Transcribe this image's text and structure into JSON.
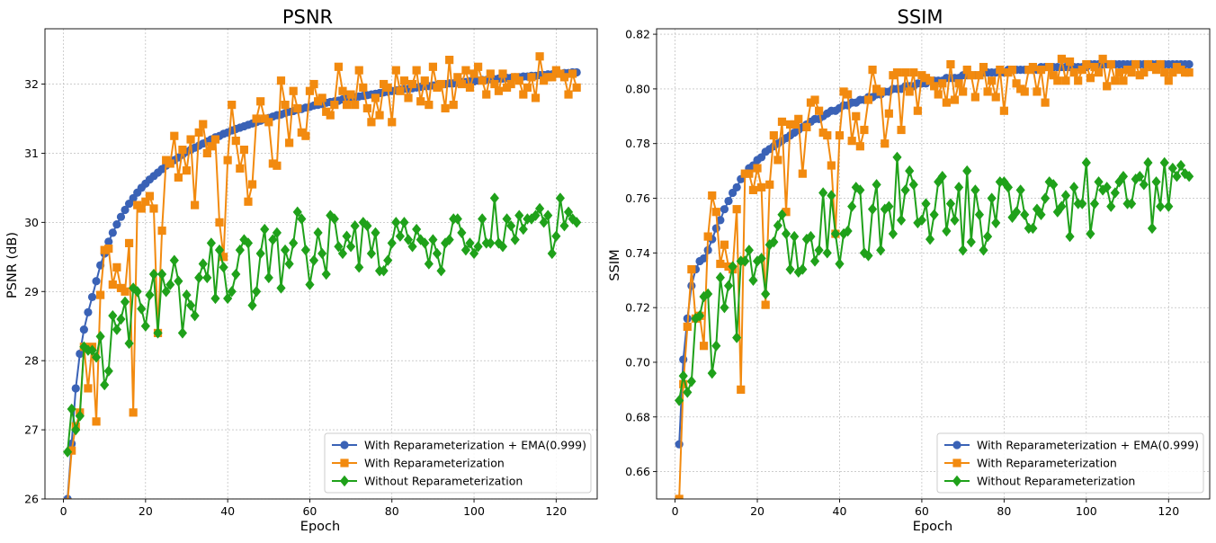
{
  "chart_data": [
    {
      "type": "line",
      "title": "PSNR",
      "xlabel": "Epoch",
      "ylabel": "PSNR (dB)",
      "xlim": [
        -4.5,
        130
      ],
      "ylim": [
        26,
        32.8
      ],
      "xticks": [
        0,
        20,
        40,
        60,
        80,
        100,
        120
      ],
      "yticks": [
        26,
        27,
        28,
        29,
        30,
        31,
        32
      ],
      "ytick_decimals": 0,
      "grid": true,
      "legend": "bottom-right",
      "epochs": [
        1,
        125
      ],
      "series": [
        {
          "name": "With Reparameterization + EMA(0.999)",
          "color": "#3a62b6",
          "marker": "circle",
          "values": [
            26.0,
            26.8,
            27.6,
            28.1,
            28.45,
            28.7,
            28.92,
            29.15,
            29.38,
            29.55,
            29.72,
            29.85,
            29.97,
            30.08,
            30.18,
            30.27,
            30.35,
            30.43,
            30.5,
            30.56,
            30.62,
            30.67,
            30.72,
            30.77,
            30.82,
            30.86,
            30.9,
            30.94,
            30.98,
            31.02,
            31.05,
            31.08,
            31.11,
            31.14,
            31.17,
            31.2,
            31.23,
            31.25,
            31.28,
            31.3,
            31.33,
            31.35,
            31.37,
            31.39,
            31.41,
            31.43,
            31.45,
            31.47,
            31.49,
            31.51,
            31.53,
            31.55,
            31.56,
            31.58,
            31.6,
            31.61,
            31.63,
            31.64,
            31.66,
            31.67,
            31.69,
            31.7,
            31.71,
            31.73,
            31.74,
            31.75,
            31.76,
            31.78,
            31.79,
            31.8,
            31.81,
            31.82,
            31.83,
            31.84,
            31.85,
            31.86,
            31.87,
            31.88,
            31.89,
            31.9,
            31.91,
            31.92,
            31.93,
            31.93,
            31.94,
            31.95,
            31.96,
            31.97,
            31.97,
            31.98,
            31.99,
            31.99,
            32.0,
            32.01,
            32.01,
            32.02,
            32.03,
            32.03,
            32.04,
            32.04,
            32.05,
            32.06,
            32.06,
            32.07,
            32.07,
            32.08,
            32.08,
            32.09,
            32.09,
            32.1,
            32.1,
            32.11,
            32.11,
            32.12,
            32.12,
            32.13,
            32.13,
            32.14,
            32.14,
            32.15,
            32.15,
            32.16,
            32.16,
            32.17,
            32.17
          ]
        },
        {
          "name": "With Reparameterization",
          "color": "#f28a0f",
          "marker": "square",
          "values": [
            25.95,
            26.7,
            27.05,
            27.25,
            28.2,
            27.6,
            28.2,
            27.12,
            28.95,
            29.6,
            29.62,
            29.1,
            29.35,
            29.05,
            29.0,
            29.7,
            27.25,
            30.25,
            30.2,
            30.3,
            30.38,
            30.2,
            28.4,
            29.88,
            30.9,
            30.85,
            31.25,
            30.65,
            31.05,
            30.75,
            31.2,
            30.25,
            31.3,
            31.42,
            31.0,
            31.1,
            31.2,
            30.0,
            29.5,
            30.9,
            31.7,
            31.18,
            30.78,
            31.05,
            30.3,
            30.55,
            31.5,
            31.75,
            31.5,
            31.45,
            30.85,
            30.82,
            32.05,
            31.7,
            31.15,
            31.9,
            31.65,
            31.3,
            31.25,
            31.9,
            32.0,
            31.75,
            31.8,
            31.6,
            31.55,
            31.7,
            32.25,
            31.9,
            31.7,
            31.85,
            31.7,
            32.2,
            31.95,
            31.65,
            31.45,
            31.8,
            31.55,
            32.0,
            31.95,
            31.45,
            32.2,
            31.9,
            32.05,
            31.8,
            32.0,
            32.2,
            31.75,
            32.05,
            31.7,
            32.25,
            31.95,
            32.0,
            31.65,
            32.35,
            31.7,
            32.1,
            32.0,
            32.2,
            31.95,
            32.15,
            32.25,
            32.05,
            31.85,
            32.15,
            32.0,
            31.9,
            32.15,
            31.95,
            32.0,
            32.1,
            32.05,
            31.85,
            31.95,
            32.1,
            31.8,
            32.4,
            32.05,
            32.1,
            32.1,
            32.2,
            32.15,
            32.1,
            31.85,
            32.15,
            31.95
          ]
        },
        {
          "name": "Without Reparameterization",
          "color": "#1fa11a",
          "marker": "diamond",
          "values": [
            26.68,
            27.3,
            27.0,
            27.2,
            28.2,
            28.15,
            28.15,
            28.05,
            28.35,
            27.65,
            27.85,
            28.65,
            28.45,
            28.6,
            28.85,
            28.25,
            29.05,
            29.0,
            28.75,
            28.5,
            28.95,
            29.25,
            28.4,
            29.25,
            29.0,
            29.1,
            29.45,
            29.15,
            28.4,
            28.95,
            28.8,
            28.65,
            29.2,
            29.4,
            29.2,
            29.7,
            28.9,
            29.6,
            29.35,
            28.9,
            29.0,
            29.25,
            29.6,
            29.75,
            29.7,
            28.8,
            29.0,
            29.55,
            29.9,
            29.2,
            29.75,
            29.85,
            29.05,
            29.6,
            29.4,
            29.7,
            30.15,
            30.05,
            29.6,
            29.1,
            29.45,
            29.85,
            29.55,
            29.25,
            30.1,
            30.05,
            29.65,
            29.55,
            29.8,
            29.65,
            29.95,
            29.35,
            30.0,
            29.95,
            29.55,
            29.85,
            29.3,
            29.3,
            29.45,
            29.7,
            30.0,
            29.8,
            30.0,
            29.75,
            29.65,
            29.9,
            29.75,
            29.7,
            29.4,
            29.75,
            29.55,
            29.3,
            29.7,
            29.75,
            30.05,
            30.05,
            29.85,
            29.6,
            29.7,
            29.55,
            29.65,
            30.05,
            29.7,
            29.7,
            30.35,
            29.7,
            29.65,
            30.05,
            29.95,
            29.75,
            30.1,
            29.9,
            30.05,
            30.05,
            30.1,
            30.2,
            30.0,
            30.1,
            29.55,
            29.8,
            30.35,
            29.95,
            30.15,
            30.05,
            30.0
          ]
        }
      ]
    },
    {
      "type": "line",
      "title": "SSIM",
      "xlabel": "Epoch",
      "ylabel": "SSIM",
      "xlim": [
        -4.5,
        130
      ],
      "ylim": [
        0.65,
        0.822
      ],
      "xticks": [
        0,
        20,
        40,
        60,
        80,
        100,
        120
      ],
      "yticks": [
        0.66,
        0.68,
        0.7,
        0.72,
        0.74,
        0.76,
        0.78,
        0.8,
        0.82
      ],
      "ytick_decimals": 2,
      "grid": true,
      "legend": "bottom-right",
      "epochs": [
        1,
        125
      ],
      "series": [
        {
          "name": "With Reparameterization + EMA(0.999)",
          "color": "#3a62b6",
          "marker": "circle",
          "values": [
            0.67,
            0.701,
            0.716,
            0.728,
            0.734,
            0.737,
            0.738,
            0.741,
            0.745,
            0.749,
            0.752,
            0.756,
            0.759,
            0.762,
            0.764,
            0.767,
            0.769,
            0.771,
            0.772,
            0.774,
            0.775,
            0.777,
            0.778,
            0.779,
            0.78,
            0.781,
            0.782,
            0.783,
            0.784,
            0.785,
            0.786,
            0.787,
            0.788,
            0.789,
            0.789,
            0.79,
            0.791,
            0.792,
            0.792,
            0.793,
            0.794,
            0.794,
            0.795,
            0.795,
            0.796,
            0.796,
            0.797,
            0.797,
            0.798,
            0.798,
            0.799,
            0.799,
            0.8,
            0.8,
            0.8,
            0.801,
            0.801,
            0.801,
            0.802,
            0.802,
            0.802,
            0.803,
            0.803,
            0.803,
            0.803,
            0.804,
            0.804,
            0.804,
            0.804,
            0.805,
            0.805,
            0.805,
            0.805,
            0.805,
            0.806,
            0.806,
            0.806,
            0.806,
            0.806,
            0.806,
            0.807,
            0.807,
            0.807,
            0.807,
            0.807,
            0.807,
            0.807,
            0.807,
            0.808,
            0.808,
            0.808,
            0.808,
            0.808,
            0.808,
            0.808,
            0.808,
            0.808,
            0.808,
            0.808,
            0.808,
            0.809,
            0.809,
            0.809,
            0.809,
            0.809,
            0.809,
            0.809,
            0.809,
            0.809,
            0.809,
            0.809,
            0.809,
            0.809,
            0.809,
            0.809,
            0.809,
            0.809,
            0.809,
            0.809,
            0.809,
            0.809,
            0.809,
            0.809,
            0.809,
            0.809
          ]
        },
        {
          "name": "With Reparameterization",
          "color": "#f28a0f",
          "marker": "square",
          "values": [
            0.65,
            0.692,
            0.713,
            0.734,
            0.716,
            0.717,
            0.706,
            0.746,
            0.761,
            0.755,
            0.736,
            0.743,
            0.735,
            0.734,
            0.756,
            0.69,
            0.769,
            0.769,
            0.763,
            0.771,
            0.764,
            0.721,
            0.765,
            0.783,
            0.774,
            0.788,
            0.755,
            0.787,
            0.787,
            0.789,
            0.769,
            0.786,
            0.795,
            0.796,
            0.792,
            0.784,
            0.783,
            0.772,
            0.747,
            0.783,
            0.799,
            0.798,
            0.781,
            0.79,
            0.779,
            0.785,
            0.796,
            0.807,
            0.8,
            0.799,
            0.78,
            0.791,
            0.805,
            0.806,
            0.785,
            0.806,
            0.799,
            0.806,
            0.792,
            0.805,
            0.804,
            0.803,
            0.801,
            0.798,
            0.802,
            0.795,
            0.809,
            0.796,
            0.802,
            0.799,
            0.807,
            0.805,
            0.797,
            0.805,
            0.808,
            0.799,
            0.803,
            0.797,
            0.807,
            0.792,
            0.806,
            0.807,
            0.802,
            0.8,
            0.799,
            0.807,
            0.808,
            0.799,
            0.807,
            0.795,
            0.808,
            0.805,
            0.803,
            0.811,
            0.803,
            0.81,
            0.806,
            0.803,
            0.807,
            0.809,
            0.804,
            0.808,
            0.806,
            0.811,
            0.801,
            0.809,
            0.803,
            0.806,
            0.803,
            0.807,
            0.806,
            0.809,
            0.805,
            0.806,
            0.809,
            0.808,
            0.807,
            0.809,
            0.806,
            0.803,
            0.806,
            0.808,
            0.807,
            0.806,
            0.806
          ]
        },
        {
          "name": "Without Reparameterization",
          "color": "#1fa11a",
          "marker": "diamond",
          "values": [
            0.686,
            0.695,
            0.689,
            0.693,
            0.716,
            0.717,
            0.724,
            0.725,
            0.696,
            0.706,
            0.731,
            0.72,
            0.728,
            0.735,
            0.709,
            0.737,
            0.737,
            0.741,
            0.73,
            0.737,
            0.738,
            0.725,
            0.743,
            0.744,
            0.75,
            0.754,
            0.747,
            0.734,
            0.746,
            0.733,
            0.734,
            0.745,
            0.746,
            0.737,
            0.741,
            0.762,
            0.74,
            0.761,
            0.747,
            0.736,
            0.747,
            0.748,
            0.757,
            0.764,
            0.763,
            0.74,
            0.739,
            0.756,
            0.765,
            0.741,
            0.756,
            0.757,
            0.747,
            0.775,
            0.752,
            0.763,
            0.77,
            0.765,
            0.751,
            0.752,
            0.758,
            0.745,
            0.754,
            0.766,
            0.768,
            0.748,
            0.758,
            0.752,
            0.764,
            0.741,
            0.77,
            0.744,
            0.763,
            0.754,
            0.741,
            0.746,
            0.76,
            0.751,
            0.766,
            0.766,
            0.764,
            0.753,
            0.755,
            0.763,
            0.754,
            0.749,
            0.749,
            0.756,
            0.754,
            0.76,
            0.766,
            0.765,
            0.755,
            0.757,
            0.761,
            0.746,
            0.764,
            0.758,
            0.758,
            0.773,
            0.747,
            0.758,
            0.766,
            0.763,
            0.764,
            0.757,
            0.762,
            0.766,
            0.768,
            0.758,
            0.758,
            0.767,
            0.768,
            0.765,
            0.773,
            0.749,
            0.766,
            0.757,
            0.773,
            0.757,
            0.771,
            0.768,
            0.772,
            0.769,
            0.768
          ]
        }
      ]
    }
  ]
}
